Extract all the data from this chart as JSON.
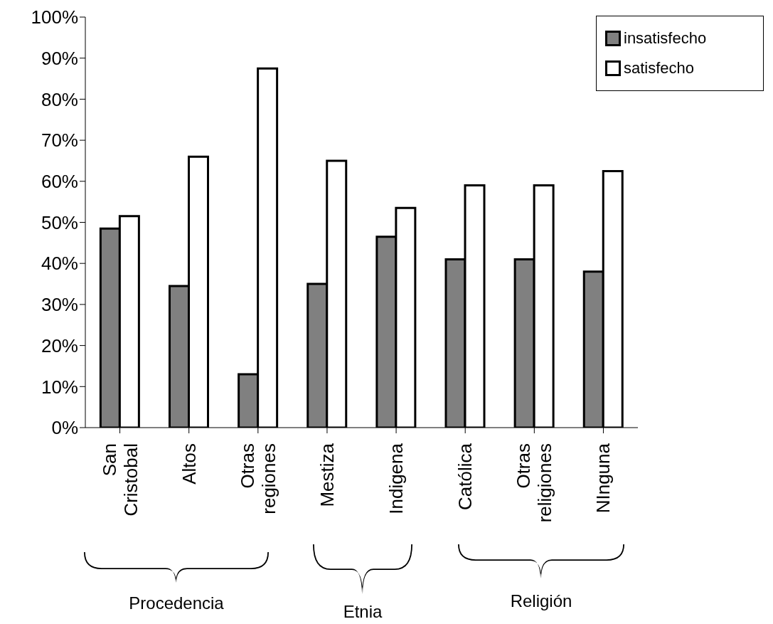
{
  "chart_data": {
    "type": "bar",
    "categories": [
      "San Cristobal",
      "Altos",
      "Otras regiones",
      "Mestiza",
      "Indigena",
      "Católica",
      "Otras religiones",
      "NInguna"
    ],
    "series": [
      {
        "name": "insatisfecho",
        "color": "#808080",
        "values": [
          48.5,
          34.5,
          13,
          35,
          46.5,
          41,
          41,
          38
        ]
      },
      {
        "name": "satisfecho",
        "color": "#ffffff",
        "values": [
          51.5,
          66,
          87.5,
          65,
          53.5,
          59,
          59,
          62.5
        ]
      }
    ],
    "ylim": [
      0,
      100
    ],
    "yticks": [
      {
        "value": 0,
        "label": "0%"
      },
      {
        "value": 10,
        "label": "10%"
      },
      {
        "value": 20,
        "label": "20%"
      },
      {
        "value": 30,
        "label": "30%"
      },
      {
        "value": 40,
        "label": "40%"
      },
      {
        "value": 50,
        "label": "50%"
      },
      {
        "value": 60,
        "label": "60%"
      },
      {
        "value": 70,
        "label": "70%"
      },
      {
        "value": 80,
        "label": "80%"
      },
      {
        "value": 90,
        "label": "90%"
      },
      {
        "value": 100,
        "label": "100%"
      }
    ],
    "grid": false,
    "legend": "top right",
    "annotations": [
      "Procedencia",
      "Etnia",
      "Religión"
    ]
  }
}
